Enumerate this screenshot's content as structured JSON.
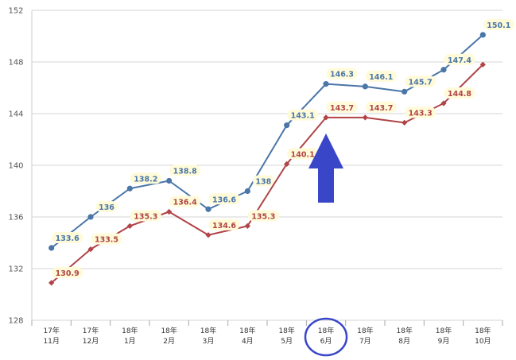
{
  "chart_data": {
    "type": "line",
    "categories": [
      [
        "17年",
        "11月"
      ],
      [
        "17年",
        "12月"
      ],
      [
        "18年",
        "1月"
      ],
      [
        "18年",
        "2月"
      ],
      [
        "18年",
        "3月"
      ],
      [
        "18年",
        "4月"
      ],
      [
        "18年",
        "5月"
      ],
      [
        "18年",
        "6月"
      ],
      [
        "18年",
        "7月"
      ],
      [
        "18年",
        "8月"
      ],
      [
        "18年",
        "9月"
      ],
      [
        "18年",
        "10月"
      ]
    ],
    "series": [
      {
        "color": "#4a76a8",
        "marker": "circle",
        "values": [
          133.6,
          136,
          138.2,
          138.8,
          136.6,
          138,
          143.1,
          146.3,
          146.1,
          145.7,
          147.4,
          150.1
        ],
        "labels": [
          "133.6",
          "136",
          "138.2",
          "138.8",
          "136.6",
          "138",
          "143.1",
          "146.3",
          "146.1",
          "145.7",
          "147.4",
          "150.1"
        ]
      },
      {
        "color": "#b04448",
        "marker": "diamond",
        "values": [
          130.9,
          133.5,
          135.3,
          136.4,
          134.6,
          135.3,
          140.1,
          143.7,
          143.7,
          143.3,
          144.8,
          147.8
        ],
        "labels": [
          "130.9",
          "133.5",
          "135.3",
          "136.4",
          "134.6",
          "135.3",
          "140.1",
          "143.7",
          "143.7",
          "143.3",
          "144.8",
          ""
        ]
      }
    ],
    "yticks": [
      "128",
      "132",
      "136",
      "140",
      "144",
      "148",
      "152"
    ],
    "ylim": [
      128,
      152
    ],
    "grid": true,
    "legend": "none",
    "annotations": {
      "arrow_color": "#3a46c8",
      "arrow_points_to_category_index": 7,
      "circle_color": "#3a46c8",
      "circle_category_index": 7
    },
    "label_bg_color": "#fffbd8",
    "grid_color": "#d6d6d6"
  }
}
